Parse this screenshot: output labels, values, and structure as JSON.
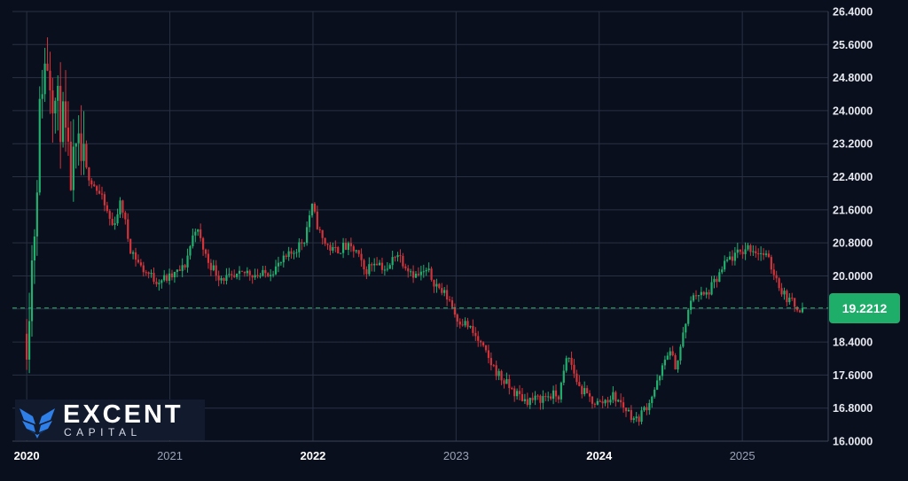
{
  "chart_data": {
    "type": "candlestick",
    "x_ticks": [
      {
        "label": "2020",
        "year": 2020,
        "emphasis": "major"
      },
      {
        "label": "2021",
        "year": 2021,
        "emphasis": "minor"
      },
      {
        "label": "2022",
        "year": 2022,
        "emphasis": "major"
      },
      {
        "label": "2023",
        "year": 2023,
        "emphasis": "minor"
      },
      {
        "label": "2024",
        "year": 2024,
        "emphasis": "major"
      },
      {
        "label": "2025",
        "year": 2025,
        "emphasis": "minor"
      }
    ],
    "y_ticks": [
      "26.4000",
      "25.6000",
      "24.8000",
      "24.0000",
      "23.2000",
      "22.4000",
      "21.6000",
      "20.8000",
      "20.0000",
      "19.2000",
      "18.4000",
      "17.6000",
      "16.8000",
      "16.0000"
    ],
    "ylim": [
      16.0,
      26.4
    ],
    "xlim": [
      2019.9,
      2025.6
    ],
    "grid": true,
    "current_price": {
      "value": 19.2212,
      "label": "19.2212"
    },
    "colors": {
      "background": "#0a0f1e",
      "grid": "#283142",
      "up": "#22b06e",
      "down": "#d2343a",
      "price_line": "#27b574",
      "badge": "#1fae6a"
    },
    "price_path": [
      [
        2020.0,
        18.6
      ],
      [
        2020.06,
        21.5
      ],
      [
        2020.1,
        24.6
      ],
      [
        2020.14,
        25.3
      ],
      [
        2020.2,
        24.2
      ],
      [
        2020.26,
        23.6
      ],
      [
        2020.3,
        22.3
      ],
      [
        2020.36,
        22.9
      ],
      [
        2020.44,
        22.4
      ],
      [
        2020.52,
        21.9
      ],
      [
        2020.6,
        21.2
      ],
      [
        2020.66,
        21.8
      ],
      [
        2020.72,
        20.7
      ],
      [
        2020.8,
        20.2
      ],
      [
        2020.9,
        19.9
      ],
      [
        2021.0,
        19.95
      ],
      [
        2021.1,
        20.2
      ],
      [
        2021.18,
        21.2
      ],
      [
        2021.26,
        20.4
      ],
      [
        2021.34,
        20.0
      ],
      [
        2021.44,
        19.9
      ],
      [
        2021.54,
        20.1
      ],
      [
        2021.64,
        20.0
      ],
      [
        2021.74,
        20.2
      ],
      [
        2021.84,
        20.5
      ],
      [
        2021.94,
        20.9
      ],
      [
        2021.99,
        21.7
      ],
      [
        2022.06,
        20.9
      ],
      [
        2022.14,
        20.6
      ],
      [
        2022.22,
        20.7
      ],
      [
        2022.3,
        20.6
      ],
      [
        2022.36,
        20.1
      ],
      [
        2022.44,
        20.4
      ],
      [
        2022.52,
        20.1
      ],
      [
        2022.58,
        20.6
      ],
      [
        2022.64,
        20.3
      ],
      [
        2022.72,
        20.0
      ],
      [
        2022.8,
        20.1
      ],
      [
        2022.88,
        19.7
      ],
      [
        2022.96,
        19.4
      ],
      [
        2023.0,
        19.0
      ],
      [
        2023.08,
        18.8
      ],
      [
        2023.16,
        18.4
      ],
      [
        2023.24,
        17.9
      ],
      [
        2023.32,
        17.5
      ],
      [
        2023.4,
        17.2
      ],
      [
        2023.48,
        17.0
      ],
      [
        2023.56,
        17.0
      ],
      [
        2023.64,
        17.1
      ],
      [
        2023.72,
        17.1
      ],
      [
        2023.78,
        18.1
      ],
      [
        2023.86,
        17.3
      ],
      [
        2023.94,
        17.0
      ],
      [
        2024.0,
        16.9
      ],
      [
        2024.1,
        17.1
      ],
      [
        2024.18,
        16.8
      ],
      [
        2024.26,
        16.5
      ],
      [
        2024.34,
        16.9
      ],
      [
        2024.42,
        17.5
      ],
      [
        2024.48,
        18.2
      ],
      [
        2024.54,
        17.8
      ],
      [
        2024.6,
        18.8
      ],
      [
        2024.66,
        19.6
      ],
      [
        2024.74,
        19.5
      ],
      [
        2024.82,
        19.9
      ],
      [
        2024.9,
        20.4
      ],
      [
        2024.96,
        20.5
      ],
      [
        2025.04,
        20.7
      ],
      [
        2025.1,
        20.6
      ],
      [
        2025.16,
        20.5
      ],
      [
        2025.22,
        20.1
      ],
      [
        2025.28,
        19.6
      ],
      [
        2025.36,
        19.3
      ],
      [
        2025.42,
        19.2212
      ]
    ]
  },
  "logo": {
    "name": "EXCENT",
    "sub": "CAPITAL",
    "icon": "excent-wings-icon"
  }
}
